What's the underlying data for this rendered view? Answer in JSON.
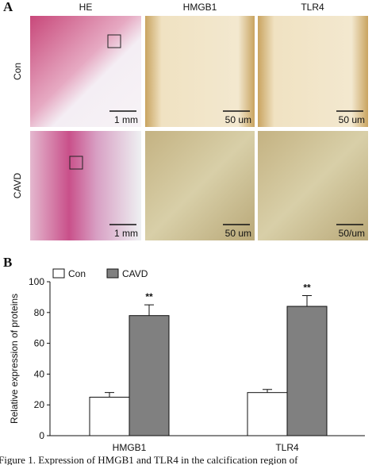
{
  "panel_a": {
    "label": "A",
    "columns": [
      "HE",
      "HMGB1",
      "TLR4"
    ],
    "rows": [
      "Con",
      "CAVD"
    ],
    "scale_bars": [
      [
        "1 mm",
        "50 um",
        "50 um"
      ],
      [
        "1 mm",
        "50 um",
        "50/um"
      ]
    ]
  },
  "chart_data": {
    "type": "bar",
    "label": "B",
    "ylabel": "Relative expression of proteins",
    "categories": [
      "HMGB1",
      "TLR4"
    ],
    "series": [
      {
        "name": "Con",
        "color": "#ffffff",
        "values": [
          25,
          28
        ],
        "errors": [
          3,
          2
        ]
      },
      {
        "name": "CAVD",
        "color": "#808080",
        "values": [
          78,
          84
        ],
        "errors": [
          7,
          7
        ]
      }
    ],
    "annotations": [
      "**",
      "**"
    ],
    "ylim": [
      0,
      100
    ],
    "yticks": [
      0,
      20,
      40,
      60,
      80,
      100
    ]
  },
  "caption": "Figure 1. Expression of HMGB1 and TLR4 in the calcification region of"
}
